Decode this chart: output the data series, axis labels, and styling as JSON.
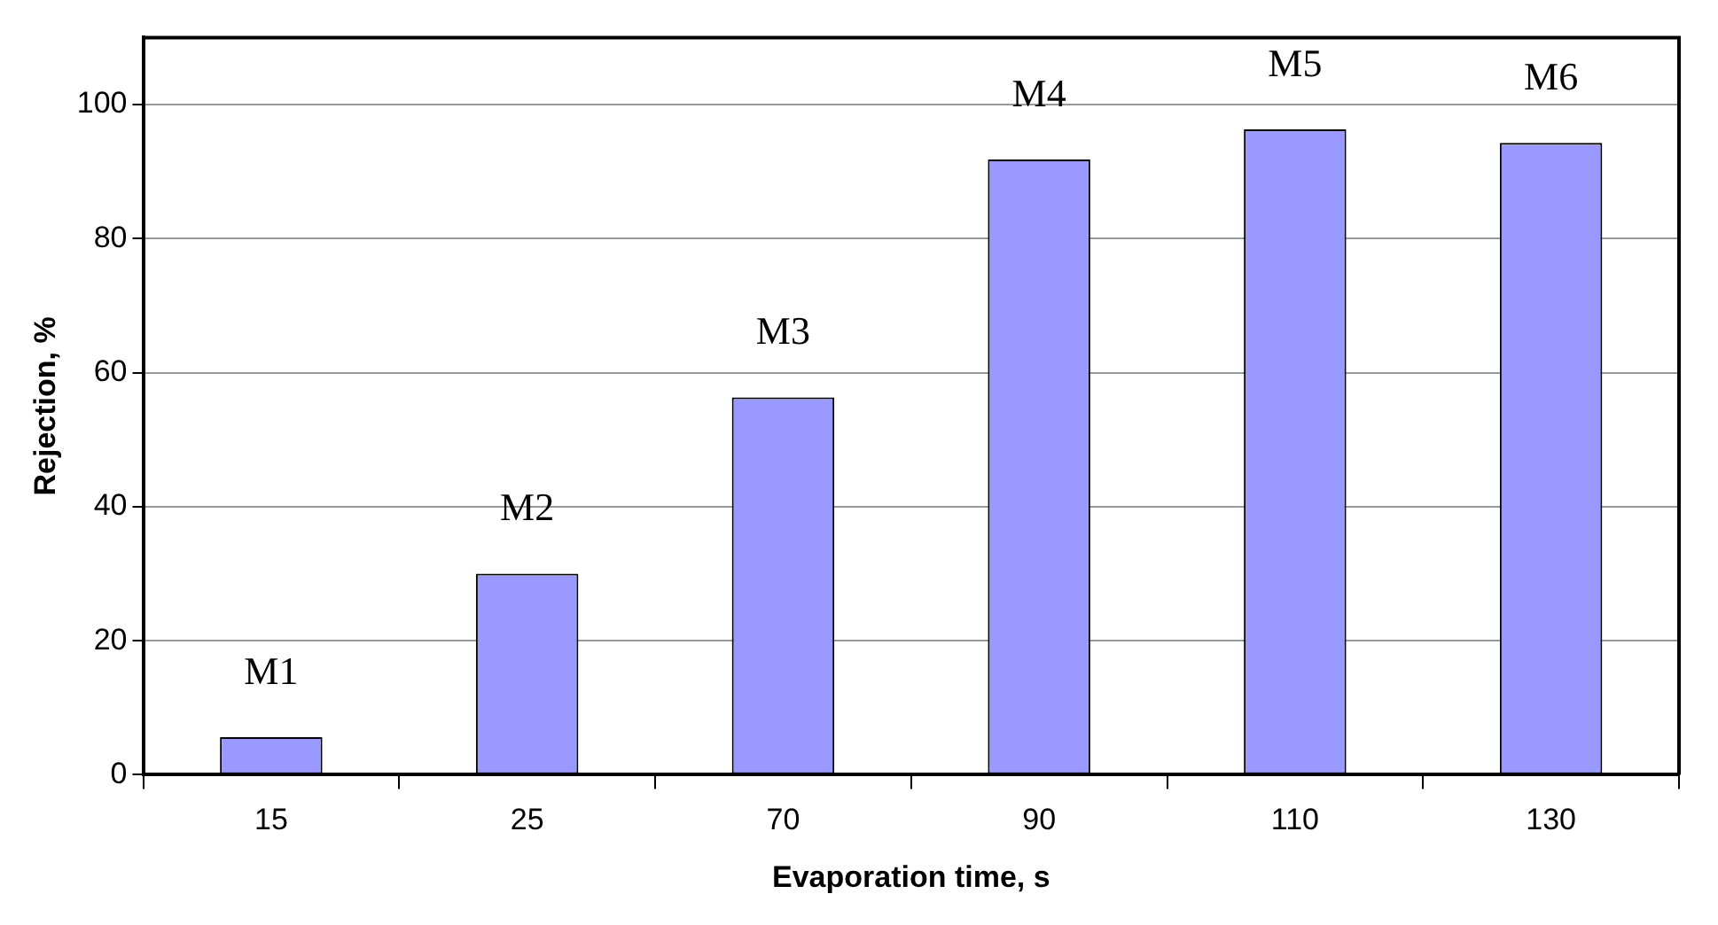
{
  "chart_data": {
    "type": "bar",
    "xlabel": "Evaporation time, s",
    "ylabel": "Rejection, %",
    "categories": [
      "15",
      "25",
      "70",
      "90",
      "110",
      "130"
    ],
    "values": [
      5.6,
      30.0,
      56.3,
      91.8,
      96.3,
      94.3
    ],
    "color": "#9999ff",
    "ylim": [
      0,
      110
    ],
    "yticks": [
      0,
      20,
      40,
      60,
      80,
      100
    ],
    "grid": "y",
    "annotations": [
      {
        "text": "M1",
        "x": "15",
        "y": 5.6
      },
      {
        "text": "M2",
        "x": "25",
        "y": 30.0
      },
      {
        "text": "M3",
        "x": "70",
        "y": 56.3
      },
      {
        "text": "M4",
        "x": "90",
        "y": 91.8
      },
      {
        "text": "M5",
        "x": "110",
        "y": 96.3
      },
      {
        "text": "M6",
        "x": "130",
        "y": 94.3
      }
    ]
  }
}
